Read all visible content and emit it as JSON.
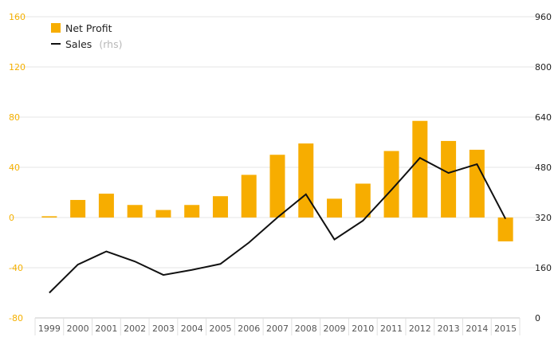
{
  "chart_data": {
    "type": "bar",
    "categories": [
      "1999",
      "2000",
      "2001",
      "2002",
      "2003",
      "2004",
      "2005",
      "2006",
      "2007",
      "2008",
      "2009",
      "2010",
      "2011",
      "2012",
      "2013",
      "2014",
      "2015"
    ],
    "series": [
      {
        "name": "Net Profit",
        "type": "bar",
        "axis": "left",
        "color": "#f7ad00",
        "values": [
          1,
          14,
          19,
          10,
          6,
          10,
          17,
          34,
          50,
          59,
          15,
          27,
          53,
          77,
          61,
          54,
          -19
        ]
      },
      {
        "name": "Sales",
        "name_suffix": "(rhs)",
        "type": "line",
        "axis": "right",
        "color": "#111111",
        "values": [
          80,
          170,
          212,
          180,
          137,
          153,
          172,
          240,
          320,
          394,
          250,
          310,
          408,
          510,
          462,
          490,
          316
        ]
      }
    ],
    "y_left": {
      "ticks": [
        -80,
        -40,
        0,
        40,
        80,
        120,
        160
      ],
      "ylim": [
        -80,
        160
      ]
    },
    "y_right": {
      "ticks": [
        0,
        160,
        320,
        480,
        640,
        800,
        960
      ],
      "ylim": [
        0,
        960
      ]
    },
    "legend_position": "top-left",
    "grid": true,
    "title": "",
    "xlabel": "",
    "ylabel": ""
  }
}
